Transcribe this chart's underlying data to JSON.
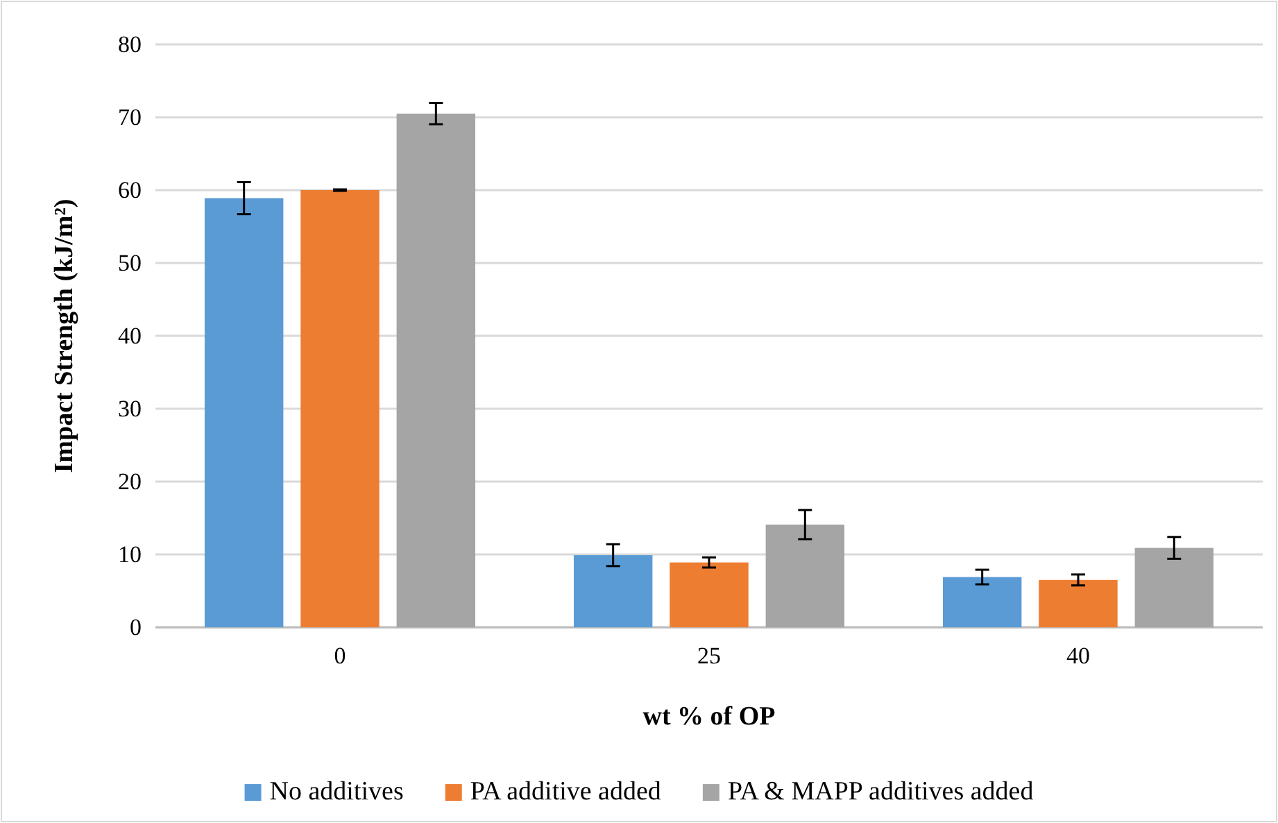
{
  "chart_data": {
    "type": "bar",
    "xlabel": "wt % of OP",
    "ylabel": "Impact Strength (kJ/m²)",
    "categories": [
      "0",
      "25",
      "40"
    ],
    "series": [
      {
        "name": "No additives",
        "color": "#5b9bd5",
        "values": [
          58.9,
          9.9,
          6.9
        ],
        "errors": [
          2.2,
          1.5,
          1.0
        ]
      },
      {
        "name": "PA additive added",
        "color": "#ed7d31",
        "values": [
          60,
          8.9,
          6.5
        ],
        "errors": [
          0.1,
          0.7,
          0.75
        ]
      },
      {
        "name": "PA & MAPP additives added",
        "color": "#a5a5a5",
        "values": [
          70.5,
          14.1,
          10.9
        ],
        "errors": [
          1.45,
          2.0,
          1.5
        ]
      }
    ],
    "ylim": [
      0,
      80
    ],
    "yticks": [
      0,
      10,
      20,
      30,
      40,
      50,
      60,
      70,
      80
    ],
    "grid": "y",
    "legend": "bottom"
  }
}
